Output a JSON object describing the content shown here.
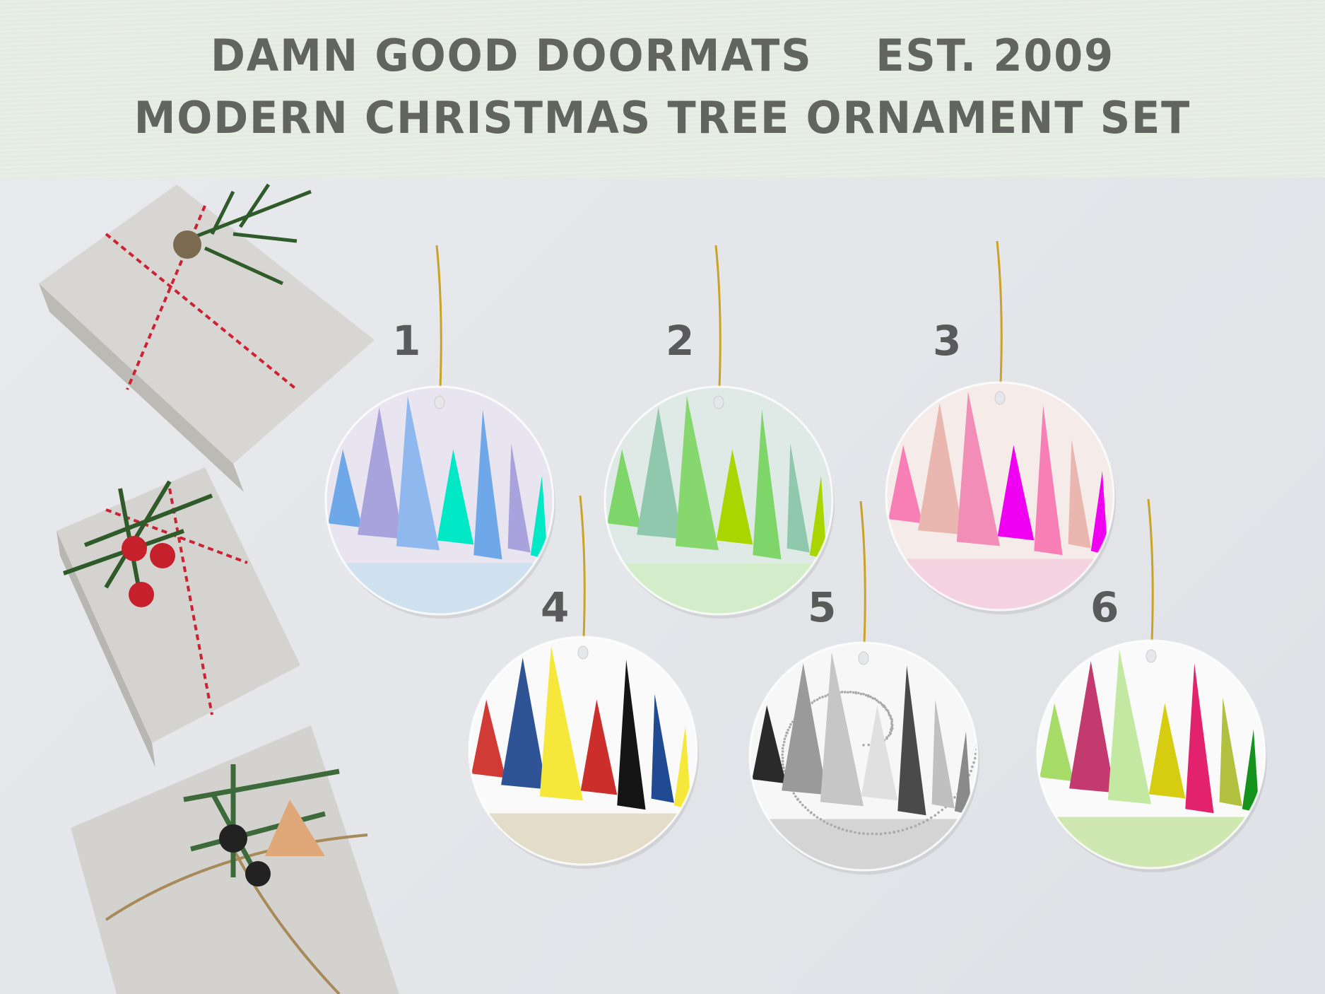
{
  "header": {
    "line1": "DAMN GOOD DOORMATS    EST. 2009",
    "line2": "MODERN CHRISTMAS TREE ORNAMENT SET"
  },
  "ornaments": [
    {
      "number": "1",
      "background": "#e8e4f0",
      "ground": "#cfe0ef",
      "trees": [
        "#6fa8e8",
        "#a9a3dd",
        "#8fb9ee",
        "#00e8c6",
        "#6fa8e8",
        "#a9a3dd",
        "#00e8c6"
      ]
    },
    {
      "number": "2",
      "background": "#dfe9e6",
      "ground": "#d3ecc9",
      "trees": [
        "#7ed66a",
        "#8fc8ac",
        "#86d86e",
        "#aad600",
        "#7ed66a",
        "#8fc8ac",
        "#aad600"
      ]
    },
    {
      "number": "3",
      "background": "#f5ebe8",
      "ground": "#f4d2e0",
      "trees": [
        "#f77fb5",
        "#eab6b0",
        "#f28db8",
        "#f000f0",
        "#f77fb5",
        "#eab6b0",
        "#f000f0"
      ]
    },
    {
      "number": "4",
      "background": "#fafafa",
      "ground": "#e3dcc8",
      "trees": [
        "#d03b35",
        "#2e5496",
        "#f5e83a",
        "#cc2e2b",
        "#151515",
        "#204a92",
        "#f5e83a"
      ]
    },
    {
      "number": "5",
      "background": "#f7f7f7",
      "ground": "#d4d4d4",
      "trees": [
        "#2a2a2a",
        "#9a9a9a",
        "#c6c6c6",
        "#e0e0e0",
        "#4a4a4a",
        "#c0c0c0",
        "#8a8a8a"
      ],
      "snow": true
    },
    {
      "number": "6",
      "background": "#fafafa",
      "ground": "#cfe7b0",
      "trees": [
        "#a8dc68",
        "#c23a6e",
        "#c3e8a2",
        "#d6cc10",
        "#e3226d",
        "#b2c040",
        "#14921c"
      ]
    }
  ],
  "colors": {
    "text": "#62645f",
    "string": "#c9a227"
  }
}
